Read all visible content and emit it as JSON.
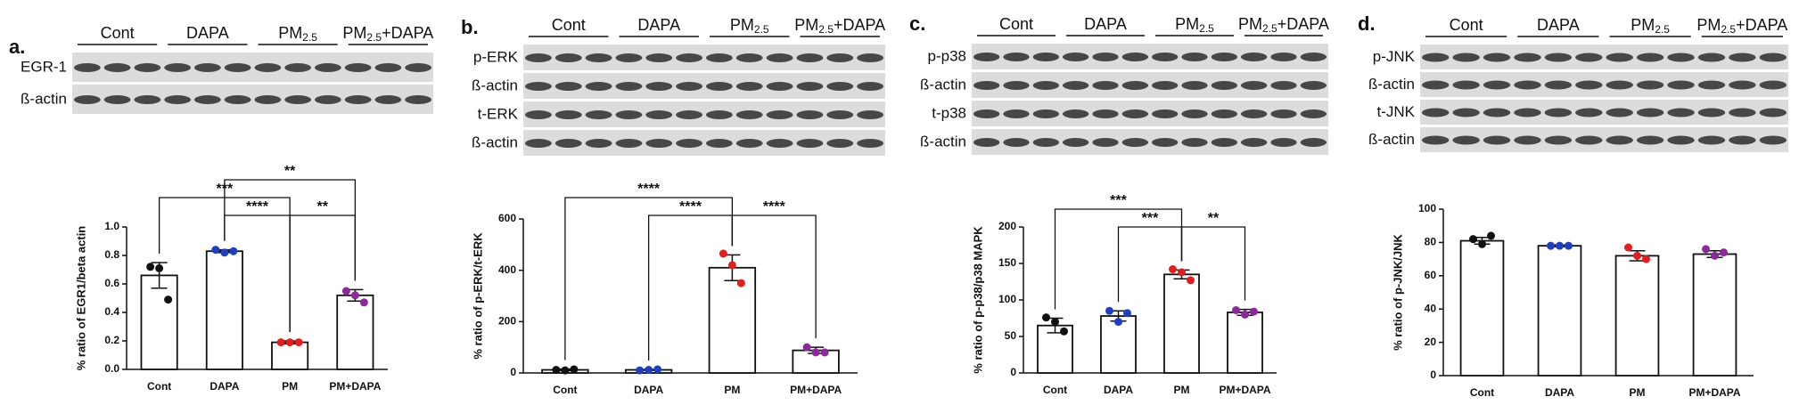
{
  "chart_data": [
    {
      "type": "bar",
      "panel_label": "a.",
      "blot": {
        "groups": [
          {
            "text": "Cont"
          },
          {
            "text": "DAPA"
          },
          {
            "text": "PM",
            "sub": "2.5"
          },
          {
            "text": "PM",
            "sub": "2.5",
            "suffix": "+DAPA"
          }
        ],
        "rows": [
          "EGR-1",
          "ß-actin"
        ]
      },
      "ylabel": "% ratio of EGR1/beta actin",
      "categories": [
        "Cont",
        "DAPA",
        "PM",
        "PM+DAPA"
      ],
      "values": [
        0.66,
        0.83,
        0.19,
        0.52
      ],
      "errors": [
        0.09,
        0.01,
        0.01,
        0.04
      ],
      "points": [
        [
          0.72,
          0.71,
          0.49
        ],
        [
          0.84,
          0.82,
          0.83
        ],
        [
          0.19,
          0.19,
          0.19
        ],
        [
          0.55,
          0.52,
          0.47
        ]
      ],
      "point_colors": [
        "#111111",
        "#1f3fbf",
        "#e02020",
        "#8a2a9a"
      ],
      "ylim": [
        0,
        1.0
      ],
      "yticks": [
        {
          "value": 0,
          "label": "0.0"
        },
        0.2,
        0.4,
        0.6,
        0.8,
        {
          "value": 1.0,
          "label": "1.0"
        }
      ],
      "significance": [
        {
          "groups": [
            "Cont",
            "PM"
          ],
          "label": "***"
        },
        {
          "groups": [
            "DAPA",
            "PM"
          ],
          "label": "****"
        },
        {
          "groups": [
            "PM",
            "PM+DAPA"
          ],
          "label": "**"
        },
        {
          "groups": [
            "DAPA",
            "PM+DAPA"
          ],
          "label": "**"
        }
      ]
    },
    {
      "type": "bar",
      "panel_label": "b.",
      "blot": {
        "groups": [
          {
            "text": "Cont"
          },
          {
            "text": "DAPA"
          },
          {
            "text": "PM",
            "sub": "2.5"
          },
          {
            "text": "PM",
            "sub": "2.5",
            "suffix": "+DAPA"
          }
        ],
        "rows": [
          "p-ERK",
          "ß-actin",
          "t-ERK",
          "ß-actin"
        ]
      },
      "ylabel": "% ratio of p-ERK/t-ERK",
      "categories": [
        "Cont",
        "DAPA",
        "PM",
        "PM+DAPA"
      ],
      "values": [
        12,
        12,
        410,
        88
      ],
      "errors": [
        3,
        2,
        50,
        12
      ],
      "points": [
        [
          12,
          10,
          14
        ],
        [
          10,
          12,
          14
        ],
        [
          465,
          420,
          350
        ],
        [
          100,
          80,
          80
        ]
      ],
      "point_colors": [
        "#111111",
        "#1f3fbf",
        "#e02020",
        "#8a2a9a"
      ],
      "ylim": [
        0,
        600
      ],
      "yticks": [
        0,
        200,
        400,
        600
      ],
      "significance": [
        {
          "groups": [
            "Cont",
            "PM"
          ],
          "label": "****"
        },
        {
          "groups": [
            "DAPA",
            "PM"
          ],
          "label": "****"
        },
        {
          "groups": [
            "PM",
            "PM+DAPA"
          ],
          "label": "****"
        }
      ]
    },
    {
      "type": "bar",
      "panel_label": "c.",
      "blot": {
        "groups": [
          {
            "text": "Cont"
          },
          {
            "text": "DAPA"
          },
          {
            "text": "PM",
            "sub": "2.5"
          },
          {
            "text": "PM",
            "sub": "2.5",
            "suffix": "+DAPA"
          }
        ],
        "rows": [
          "p-p38",
          "ß-actin",
          "t-p38",
          "ß-actin"
        ]
      },
      "ylabel": "% ratio of p-p38/p38 MAPK",
      "categories": [
        "Cont",
        "DAPA",
        "PM",
        "PM+DAPA"
      ],
      "values": [
        65,
        78,
        135,
        83
      ],
      "errors": [
        10,
        7,
        6,
        4
      ],
      "points": [
        [
          76,
          70,
          57
        ],
        [
          85,
          70,
          82
        ],
        [
          142,
          138,
          127
        ],
        [
          86,
          80,
          84
        ]
      ],
      "point_colors": [
        "#111111",
        "#1f3fbf",
        "#e02020",
        "#8a2a9a"
      ],
      "ylim": [
        0,
        200
      ],
      "yticks": [
        0,
        50,
        100,
        150,
        200
      ],
      "significance": [
        {
          "groups": [
            "Cont",
            "PM"
          ],
          "label": "***"
        },
        {
          "groups": [
            "DAPA",
            "PM"
          ],
          "label": "***"
        },
        {
          "groups": [
            "PM",
            "PM+DAPA"
          ],
          "label": "**"
        }
      ]
    },
    {
      "type": "bar",
      "panel_label": "d.",
      "blot": {
        "groups": [
          {
            "text": "Cont"
          },
          {
            "text": "DAPA"
          },
          {
            "text": "PM",
            "sub": "2.5"
          },
          {
            "text": "PM",
            "sub": "2.5",
            "suffix": "+DAPA"
          }
        ],
        "rows": [
          "p-JNK",
          "ß-actin",
          "t-JNK",
          "ß-actin"
        ]
      },
      "ylabel": "% ratio of p-JNK/JNK",
      "categories": [
        "Cont",
        "DAPA",
        "PM",
        "PM+DAPA"
      ],
      "values": [
        81,
        78,
        72,
        73
      ],
      "errors": [
        2,
        0.5,
        3,
        2
      ],
      "points": [
        [
          82,
          79,
          84
        ],
        [
          78,
          78,
          78
        ],
        [
          77,
          72,
          70
        ],
        [
          76,
          72,
          74
        ]
      ],
      "point_colors": [
        "#111111",
        "#1f3fbf",
        "#e02020",
        "#8a2a9a"
      ],
      "ylim": [
        0,
        100
      ],
      "yticks": [
        0,
        20,
        40,
        60,
        80,
        100
      ],
      "significance": []
    }
  ]
}
